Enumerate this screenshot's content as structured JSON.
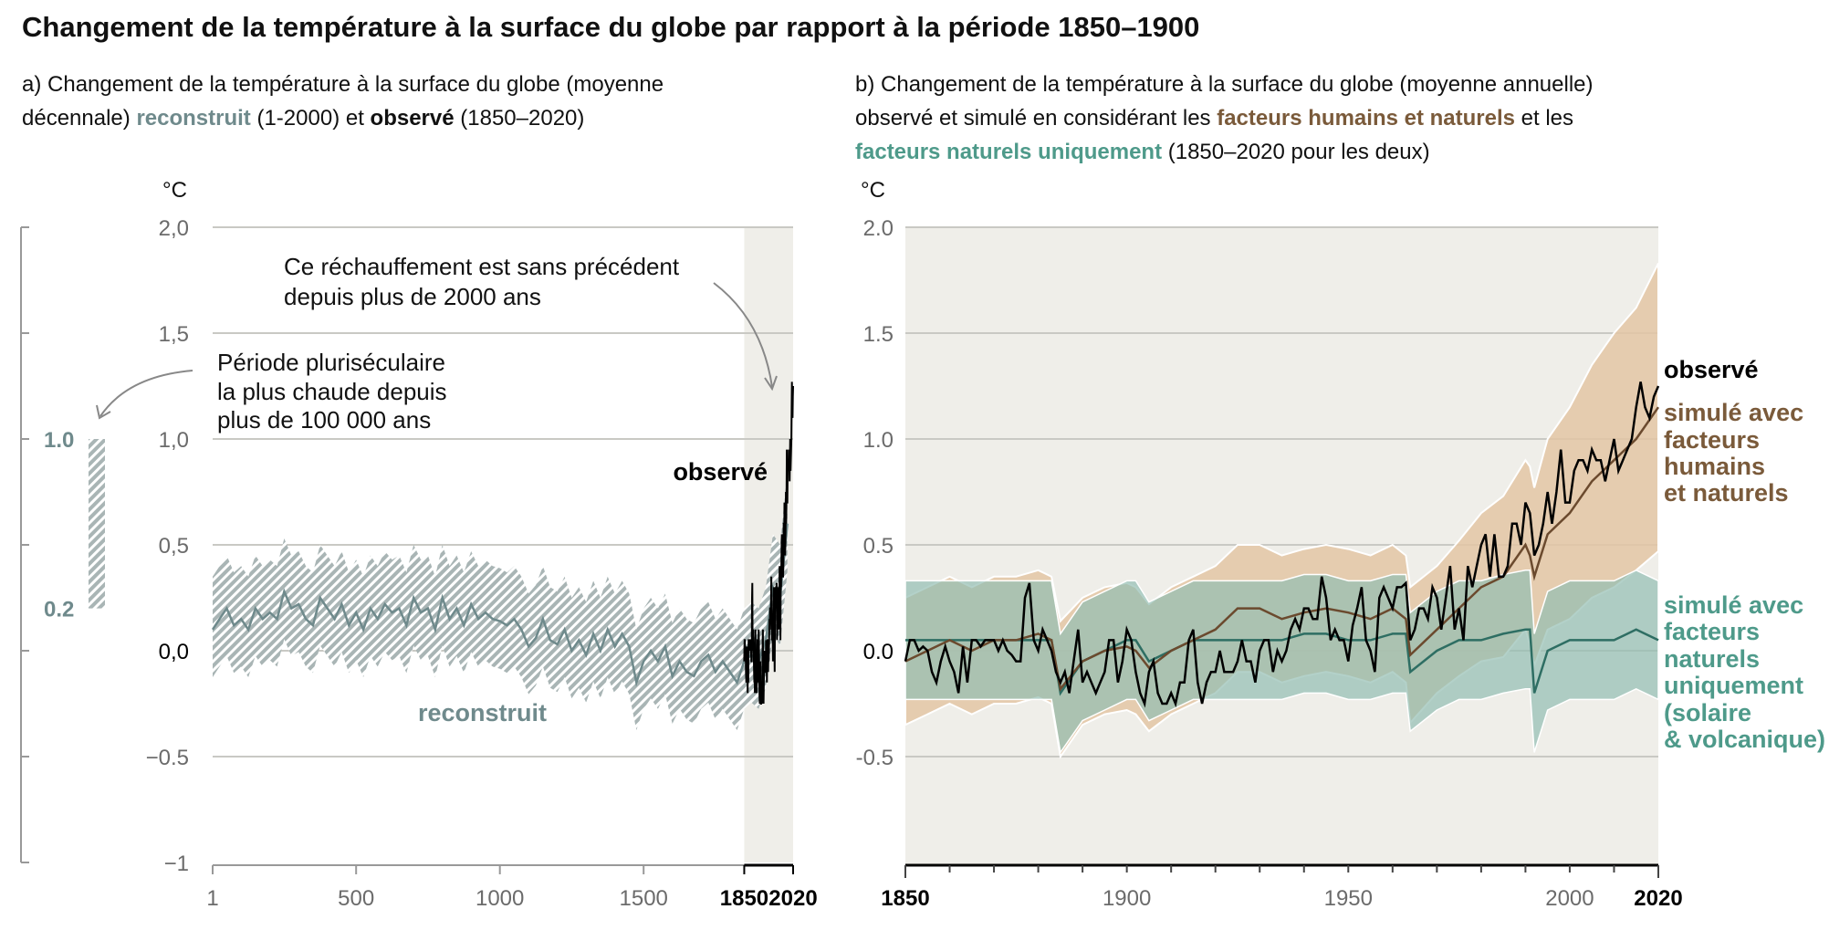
{
  "title": "Changement de la température à la surface du globe par rapport à la période 1850–1900",
  "colors": {
    "reconstructed": "#6f8a8c",
    "observed": "#000000",
    "human": "#6b4a2e",
    "human_band": "#e3c6a5",
    "human_text": "#7a5a3a",
    "natural": "#2e6e63",
    "natural_band": "#93beb2",
    "natural_text": "#4e9a8a",
    "shade": "#efeee9"
  },
  "chart_data": [
    {
      "type": "line",
      "id": "a",
      "subtitle": {
        "line1": "a) Changement de la température à la surface du globe (moyenne",
        "line2_pre": "décennale) ",
        "line2_reconstructed": "reconstruit",
        "line2_mid": " (1-2000) et ",
        "line2_observed": "observé",
        "line2_post": " (1850–2020)"
      },
      "ylabel": "°C",
      "ylim": [
        -1,
        2
      ],
      "xlim": [
        1,
        2020
      ],
      "yticks": [
        {
          "v": 2,
          "l": "2,0"
        },
        {
          "v": 1.5,
          "l": "1,5"
        },
        {
          "v": 1,
          "l": "1,0"
        },
        {
          "v": 0.5,
          "l": "0,5"
        },
        {
          "v": 0,
          "l": "0,0"
        },
        {
          "v": -0.5,
          "l": "−0.5"
        },
        {
          "v": -1,
          "l": "−1"
        }
      ],
      "xticks": [
        {
          "v": 1,
          "l": "1",
          "bold": false
        },
        {
          "v": 500,
          "l": "500",
          "bold": false
        },
        {
          "v": 1000,
          "l": "1000",
          "bold": false
        },
        {
          "v": 1500,
          "l": "1500",
          "bold": false
        },
        {
          "v": 1850,
          "l": "1850",
          "bold": true
        },
        {
          "v": 2020,
          "l": "2020",
          "bold": true
        }
      ],
      "shaded_period": [
        1850,
        2020
      ],
      "side_scale": {
        "upper": 1.0,
        "lower": 0.2,
        "upper_label": "1.0",
        "lower_label": "0.2"
      },
      "annotations": {
        "unprecedented": [
          "Ce réchauffement est sans précédent",
          "depuis plus de 2000 ans"
        ],
        "warmest": [
          "Période pluriséculaire",
          "la plus chaude depuis",
          "plus de 100 000 ans"
        ],
        "observed_label": "observé",
        "reconstructed_label": "reconstruit"
      },
      "reconstructed": {
        "years": [
          1,
          25,
          50,
          75,
          100,
          125,
          150,
          175,
          200,
          225,
          250,
          275,
          300,
          325,
          350,
          375,
          400,
          425,
          450,
          475,
          500,
          525,
          550,
          575,
          600,
          625,
          650,
          675,
          700,
          725,
          750,
          775,
          800,
          825,
          850,
          875,
          900,
          925,
          950,
          975,
          1000,
          1025,
          1050,
          1075,
          1100,
          1125,
          1150,
          1175,
          1200,
          1225,
          1250,
          1275,
          1300,
          1325,
          1350,
          1375,
          1400,
          1425,
          1450,
          1475,
          1500,
          1525,
          1550,
          1575,
          1600,
          1625,
          1650,
          1675,
          1700,
          1725,
          1750,
          1775,
          1800,
          1825,
          1850,
          1875,
          1900,
          1925,
          1950,
          1975,
          2000
        ],
        "values": [
          0.1,
          0.15,
          0.2,
          0.12,
          0.15,
          0.1,
          0.2,
          0.15,
          0.18,
          0.15,
          0.28,
          0.2,
          0.22,
          0.15,
          0.12,
          0.25,
          0.2,
          0.15,
          0.22,
          0.12,
          0.18,
          0.1,
          0.2,
          0.15,
          0.22,
          0.18,
          0.2,
          0.12,
          0.25,
          0.18,
          0.2,
          0.1,
          0.25,
          0.15,
          0.2,
          0.12,
          0.22,
          0.15,
          0.18,
          0.15,
          0.14,
          0.12,
          0.15,
          0.1,
          0.02,
          0.06,
          0.15,
          0.05,
          0.03,
          0.1,
          0.0,
          0.05,
          -0.02,
          0.08,
          0.0,
          0.1,
          0.02,
          0.08,
          0.02,
          -0.15,
          -0.05,
          0.0,
          -0.05,
          0.02,
          -0.12,
          -0.05,
          -0.1,
          -0.12,
          -0.05,
          -0.02,
          -0.1,
          -0.05,
          -0.1,
          -0.15,
          -0.05,
          -0.02,
          -0.05,
          0.05,
          0.3,
          0.25,
          0.6
        ],
        "uncertainty": 0.25
      }
    },
    {
      "type": "line",
      "id": "b",
      "subtitle": {
        "line1": "b) Changement de la température à la surface du globe (moyenne annuelle)",
        "line2_pre": "observé et simulé en considérant les ",
        "line2_human": "facteurs humains et naturels",
        "line2_post": " et les",
        "line3_natural": "facteurs naturels uniquement",
        "line3_post": " (1850–2020 pour les deux)"
      },
      "ylabel": "°C",
      "ylim": [
        -1,
        2
      ],
      "xlim": [
        1850,
        2020
      ],
      "yticks": [
        {
          "v": 2,
          "l": "2.0"
        },
        {
          "v": 1.5,
          "l": "1.5"
        },
        {
          "v": 1,
          "l": "1.0"
        },
        {
          "v": 0.5,
          "l": "0.5"
        },
        {
          "v": 0,
          "l": "0.0"
        },
        {
          "v": -0.5,
          "l": "-0.5"
        }
      ],
      "xticks": [
        {
          "v": 1850,
          "l": "1850",
          "bold": true
        },
        {
          "v": 1900,
          "l": "1900",
          "bold": false
        },
        {
          "v": 1950,
          "l": "1950",
          "bold": false
        },
        {
          "v": 2000,
          "l": "2000",
          "bold": false
        },
        {
          "v": 2020,
          "l": "2020",
          "bold": true
        }
      ],
      "labels": {
        "observed": "observé",
        "human": [
          "simulé avec",
          "facteurs",
          "humains",
          "et naturels"
        ],
        "natural": [
          "simulé avec",
          "facteurs",
          "naturels",
          "uniquement",
          "(solaire",
          "& volcanique)"
        ]
      },
      "observed": {
        "start_year": 1850,
        "values": [
          -0.05,
          0.05,
          0.05,
          0.0,
          0.02,
          0.0,
          -0.1,
          -0.15,
          -0.05,
          0.02,
          -0.05,
          -0.1,
          -0.2,
          0.02,
          -0.15,
          0.05,
          0.05,
          0.02,
          0.05,
          0.05,
          0.05,
          0.0,
          0.05,
          0.0,
          -0.02,
          -0.05,
          -0.05,
          0.25,
          0.32,
          0.05,
          0.0,
          0.1,
          0.05,
          0.0,
          -0.1,
          -0.15,
          -0.1,
          -0.2,
          -0.05,
          0.1,
          -0.15,
          -0.1,
          -0.15,
          -0.2,
          -0.15,
          -0.1,
          0.05,
          0.05,
          -0.15,
          -0.05,
          0.1,
          0.05,
          -0.1,
          -0.2,
          -0.25,
          -0.1,
          -0.05,
          -0.2,
          -0.25,
          -0.25,
          -0.2,
          -0.25,
          -0.15,
          -0.15,
          0.05,
          0.1,
          -0.15,
          -0.25,
          -0.15,
          -0.1,
          -0.1,
          0.0,
          -0.1,
          -0.1,
          -0.1,
          -0.05,
          0.05,
          -0.05,
          -0.05,
          -0.15,
          0.0,
          0.05,
          0.05,
          -0.1,
          0.0,
          -0.05,
          0.0,
          0.1,
          0.15,
          0.1,
          0.2,
          0.2,
          0.15,
          0.15,
          0.35,
          0.25,
          0.05,
          0.1,
          0.05,
          0.05,
          -0.05,
          0.12,
          0.2,
          0.3,
          0.05,
          0.0,
          -0.1,
          0.25,
          0.3,
          0.25,
          0.2,
          0.3,
          0.3,
          0.32,
          0.05,
          0.1,
          0.2,
          0.2,
          0.15,
          0.3,
          0.25,
          0.1,
          0.25,
          0.4,
          0.1,
          0.2,
          0.05,
          0.4,
          0.3,
          0.4,
          0.5,
          0.55,
          0.35,
          0.55,
          0.35,
          0.35,
          0.4,
          0.6,
          0.6,
          0.5,
          0.7,
          0.65,
          0.45,
          0.5,
          0.6,
          0.75,
          0.6,
          0.75,
          0.95,
          0.7,
          0.7,
          0.85,
          0.9,
          0.9,
          0.85,
          0.95,
          0.9,
          0.9,
          0.8,
          0.9,
          1.0,
          0.85,
          0.9,
          0.95,
          1.0,
          1.15,
          1.27,
          1.15,
          1.1,
          1.2,
          1.25
        ]
      },
      "simulated_years": [
        1850,
        1855,
        1860,
        1865,
        1870,
        1875,
        1880,
        1883,
        1885,
        1890,
        1895,
        1900,
        1902,
        1905,
        1910,
        1915,
        1920,
        1925,
        1930,
        1935,
        1940,
        1945,
        1950,
        1955,
        1960,
        1963,
        1964,
        1970,
        1975,
        1980,
        1985,
        1990,
        1991,
        1992,
        1995,
        2000,
        2005,
        2010,
        2015,
        2020
      ],
      "human_natural": {
        "mean": [
          -0.05,
          0.0,
          0.05,
          0.0,
          0.05,
          0.05,
          0.08,
          0.05,
          -0.18,
          -0.05,
          0.0,
          0.02,
          0.0,
          -0.08,
          0.0,
          0.05,
          0.1,
          0.2,
          0.2,
          0.15,
          0.18,
          0.2,
          0.18,
          0.15,
          0.2,
          0.15,
          -0.02,
          0.1,
          0.2,
          0.3,
          0.35,
          0.5,
          0.45,
          0.35,
          0.55,
          0.65,
          0.8,
          0.9,
          1.0,
          1.15
        ],
        "halfwidth": [
          0.3,
          0.3,
          0.3,
          0.3,
          0.3,
          0.3,
          0.3,
          0.3,
          0.32,
          0.3,
          0.3,
          0.3,
          0.3,
          0.3,
          0.3,
          0.3,
          0.3,
          0.3,
          0.3,
          0.3,
          0.3,
          0.3,
          0.3,
          0.3,
          0.3,
          0.3,
          0.32,
          0.3,
          0.32,
          0.35,
          0.38,
          0.4,
          0.42,
          0.42,
          0.45,
          0.5,
          0.55,
          0.6,
          0.62,
          0.68
        ]
      },
      "natural_only": {
        "mean": [
          0.05,
          0.05,
          0.05,
          0.05,
          0.05,
          0.05,
          0.05,
          0.05,
          -0.2,
          -0.05,
          0.0,
          0.05,
          0.05,
          -0.05,
          0.0,
          0.05,
          0.05,
          0.05,
          0.05,
          0.05,
          0.08,
          0.08,
          0.05,
          0.05,
          0.08,
          0.08,
          -0.1,
          0.0,
          0.05,
          0.05,
          0.08,
          0.1,
          0.1,
          -0.2,
          0.0,
          0.05,
          0.05,
          0.05,
          0.1,
          0.05
        ],
        "halfwidth": 0.28
      }
    }
  ]
}
